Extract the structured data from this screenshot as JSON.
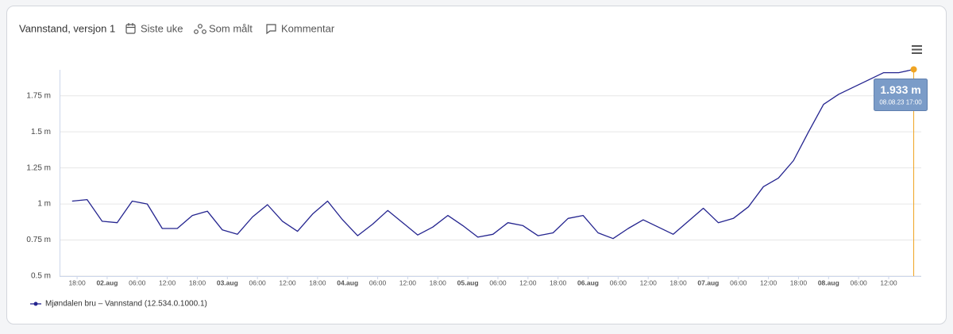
{
  "header": {
    "title": "Vannstand, versjon 1",
    "tabs": [
      "Siste uke",
      "Som målt",
      "Kommentar"
    ]
  },
  "chart_data": {
    "type": "line",
    "x": [
      "2023-08-01T17:00",
      "2023-08-01T20:00",
      "2023-08-01T23:00",
      "2023-08-02T02:00",
      "2023-08-02T05:00",
      "2023-08-02T08:00",
      "2023-08-02T11:00",
      "2023-08-02T14:00",
      "2023-08-02T17:00",
      "2023-08-02T20:00",
      "2023-08-02T23:00",
      "2023-08-03T02:00",
      "2023-08-03T05:00",
      "2023-08-03T08:00",
      "2023-08-03T11:00",
      "2023-08-03T14:00",
      "2023-08-03T17:00",
      "2023-08-03T20:00",
      "2023-08-03T23:00",
      "2023-08-04T02:00",
      "2023-08-04T05:00",
      "2023-08-04T08:00",
      "2023-08-04T11:00",
      "2023-08-04T14:00",
      "2023-08-04T17:00",
      "2023-08-04T20:00",
      "2023-08-04T23:00",
      "2023-08-05T02:00",
      "2023-08-05T05:00",
      "2023-08-05T08:00",
      "2023-08-05T11:00",
      "2023-08-05T14:00",
      "2023-08-05T17:00",
      "2023-08-05T20:00",
      "2023-08-05T23:00",
      "2023-08-06T02:00",
      "2023-08-06T05:00",
      "2023-08-06T08:00",
      "2023-08-06T11:00",
      "2023-08-06T14:00",
      "2023-08-06T17:00",
      "2023-08-06T20:00",
      "2023-08-06T23:00",
      "2023-08-07T02:00",
      "2023-08-07T05:00",
      "2023-08-07T08:00",
      "2023-08-07T11:00",
      "2023-08-07T14:00",
      "2023-08-07T17:00",
      "2023-08-07T20:00",
      "2023-08-07T23:00",
      "2023-08-08T02:00",
      "2023-08-08T05:00",
      "2023-08-08T08:00",
      "2023-08-08T11:00",
      "2023-08-08T14:00",
      "2023-08-08T17:00"
    ],
    "series": [
      {
        "name": "Mjøndalen bru – Vannstand (12.534.0.1000.1)",
        "color": "#24248f",
        "values": [
          1.02,
          1.03,
          0.88,
          0.87,
          1.02,
          1.0,
          0.83,
          0.83,
          0.92,
          0.95,
          0.82,
          0.79,
          0.91,
          0.995,
          0.88,
          0.81,
          0.93,
          1.02,
          0.89,
          0.78,
          0.86,
          0.955,
          0.87,
          0.785,
          0.84,
          0.92,
          0.85,
          0.77,
          0.79,
          0.87,
          0.85,
          0.78,
          0.8,
          0.9,
          0.92,
          0.8,
          0.76,
          0.83,
          0.89,
          0.84,
          0.79,
          0.88,
          0.97,
          0.87,
          0.9,
          0.98,
          1.12,
          1.18,
          1.3,
          1.5,
          1.69,
          1.76,
          1.81,
          1.86,
          1.91,
          1.91,
          1.933
        ]
      }
    ],
    "xlim": [
      "2023-08-01T14:30",
      "2023-08-08T18:30"
    ],
    "xticks": [
      {
        "value": "2023-08-01T18:00",
        "label": "18:00"
      },
      {
        "value": "2023-08-02T00:00",
        "label": "02.aug"
      },
      {
        "value": "2023-08-02T06:00",
        "label": "06:00"
      },
      {
        "value": "2023-08-02T12:00",
        "label": "12:00"
      },
      {
        "value": "2023-08-02T18:00",
        "label": "18:00"
      },
      {
        "value": "2023-08-03T00:00",
        "label": "03.aug"
      },
      {
        "value": "2023-08-03T06:00",
        "label": "06:00"
      },
      {
        "value": "2023-08-03T12:00",
        "label": "12:00"
      },
      {
        "value": "2023-08-03T18:00",
        "label": "18:00"
      },
      {
        "value": "2023-08-04T00:00",
        "label": "04.aug"
      },
      {
        "value": "2023-08-04T06:00",
        "label": "06:00"
      },
      {
        "value": "2023-08-04T12:00",
        "label": "12:00"
      },
      {
        "value": "2023-08-04T18:00",
        "label": "18:00"
      },
      {
        "value": "2023-08-05T00:00",
        "label": "05.aug"
      },
      {
        "value": "2023-08-05T06:00",
        "label": "06:00"
      },
      {
        "value": "2023-08-05T12:00",
        "label": "12:00"
      },
      {
        "value": "2023-08-05T18:00",
        "label": "18:00"
      },
      {
        "value": "2023-08-06T00:00",
        "label": "06.aug"
      },
      {
        "value": "2023-08-06T06:00",
        "label": "06:00"
      },
      {
        "value": "2023-08-06T12:00",
        "label": "12:00"
      },
      {
        "value": "2023-08-06T18:00",
        "label": "18:00"
      },
      {
        "value": "2023-08-07T00:00",
        "label": "07.aug"
      },
      {
        "value": "2023-08-07T06:00",
        "label": "06:00"
      },
      {
        "value": "2023-08-07T12:00",
        "label": "12:00"
      },
      {
        "value": "2023-08-07T18:00",
        "label": "18:00"
      },
      {
        "value": "2023-08-08T00:00",
        "label": "08.aug"
      },
      {
        "value": "2023-08-08T06:00",
        "label": "06:00"
      },
      {
        "value": "2023-08-08T12:00",
        "label": "12:00"
      }
    ],
    "ylim": [
      0.5,
      1.93
    ],
    "yticks": [
      {
        "value": 0.5,
        "label": "0.5 m"
      },
      {
        "value": 0.75,
        "label": "0.75 m"
      },
      {
        "value": 1,
        "label": "1 m"
      },
      {
        "value": 1.25,
        "label": "1.25 m"
      },
      {
        "value": 1.5,
        "label": "1.5 m"
      },
      {
        "value": 1.75,
        "label": "1.75 m"
      }
    ],
    "grid": true,
    "tooltip": {
      "value_label": "1.933 m",
      "time_label": "08.08.23 17:00",
      "color": "#7b9cc8",
      "marker_color": "#f0a422"
    }
  }
}
